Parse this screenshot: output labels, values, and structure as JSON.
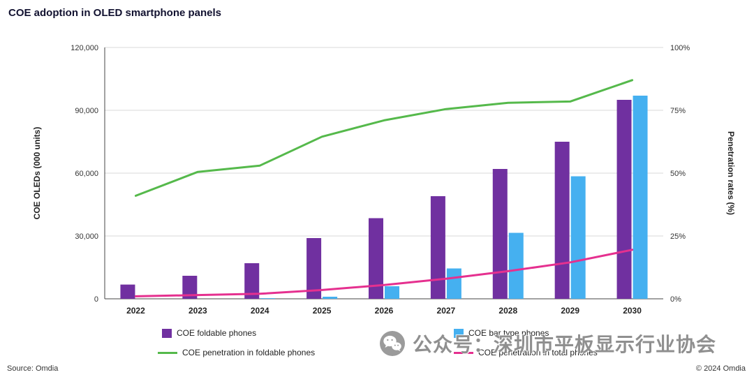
{
  "header": {
    "title": "COE adoption in OLED smartphone panels"
  },
  "chart_data": {
    "type": "bar",
    "subtype": "combo-bar-line-dual-axis",
    "title": "COE adoption in OLED smartphone panels",
    "categories": [
      "2022",
      "2023",
      "2024",
      "2025",
      "2026",
      "2027",
      "2028",
      "2029",
      "2030"
    ],
    "bar_series": [
      {
        "name": "COE foldable phones",
        "color": "#7030A0",
        "axis": "left",
        "values": [
          6800,
          11000,
          17000,
          29000,
          38500,
          49000,
          62000,
          75000,
          95000
        ]
      },
      {
        "name": "COE bar type phones",
        "color": "#45B0F0",
        "axis": "left",
        "values": [
          0,
          0,
          300,
          1000,
          6000,
          14500,
          31500,
          58500,
          97000
        ]
      }
    ],
    "line_series": [
      {
        "name": "COE penetration in foldable phones",
        "color": "#55B94B",
        "axis": "right",
        "values": [
          41,
          50.5,
          53,
          64.5,
          71,
          75.5,
          78,
          78.5,
          87
        ]
      },
      {
        "name": "COE penetration in total phones",
        "color": "#E5308F",
        "axis": "right",
        "values": [
          1,
          1.5,
          2,
          3.5,
          5.5,
          8,
          11,
          14.5,
          19.5
        ]
      }
    ],
    "left_axis": {
      "label": "COE OLEDs (000 units)",
      "min": 0,
      "max": 120000,
      "ticks": [
        "0",
        "30,000",
        "60,000",
        "90,000",
        "120,000"
      ]
    },
    "right_axis": {
      "label": "Penetration rates (%)",
      "min": 0,
      "max": 100,
      "ticks": [
        "0%",
        "25%",
        "50%",
        "75%",
        "100%"
      ]
    },
    "grid": "horizontal",
    "legend_position": "bottom"
  },
  "footer": {
    "source": "Source: Omdia",
    "copyright": "© 2024 Omdia"
  },
  "watermark": {
    "icon": "wechat-icon",
    "text": "公众号：深圳市平板显示行业协会"
  }
}
